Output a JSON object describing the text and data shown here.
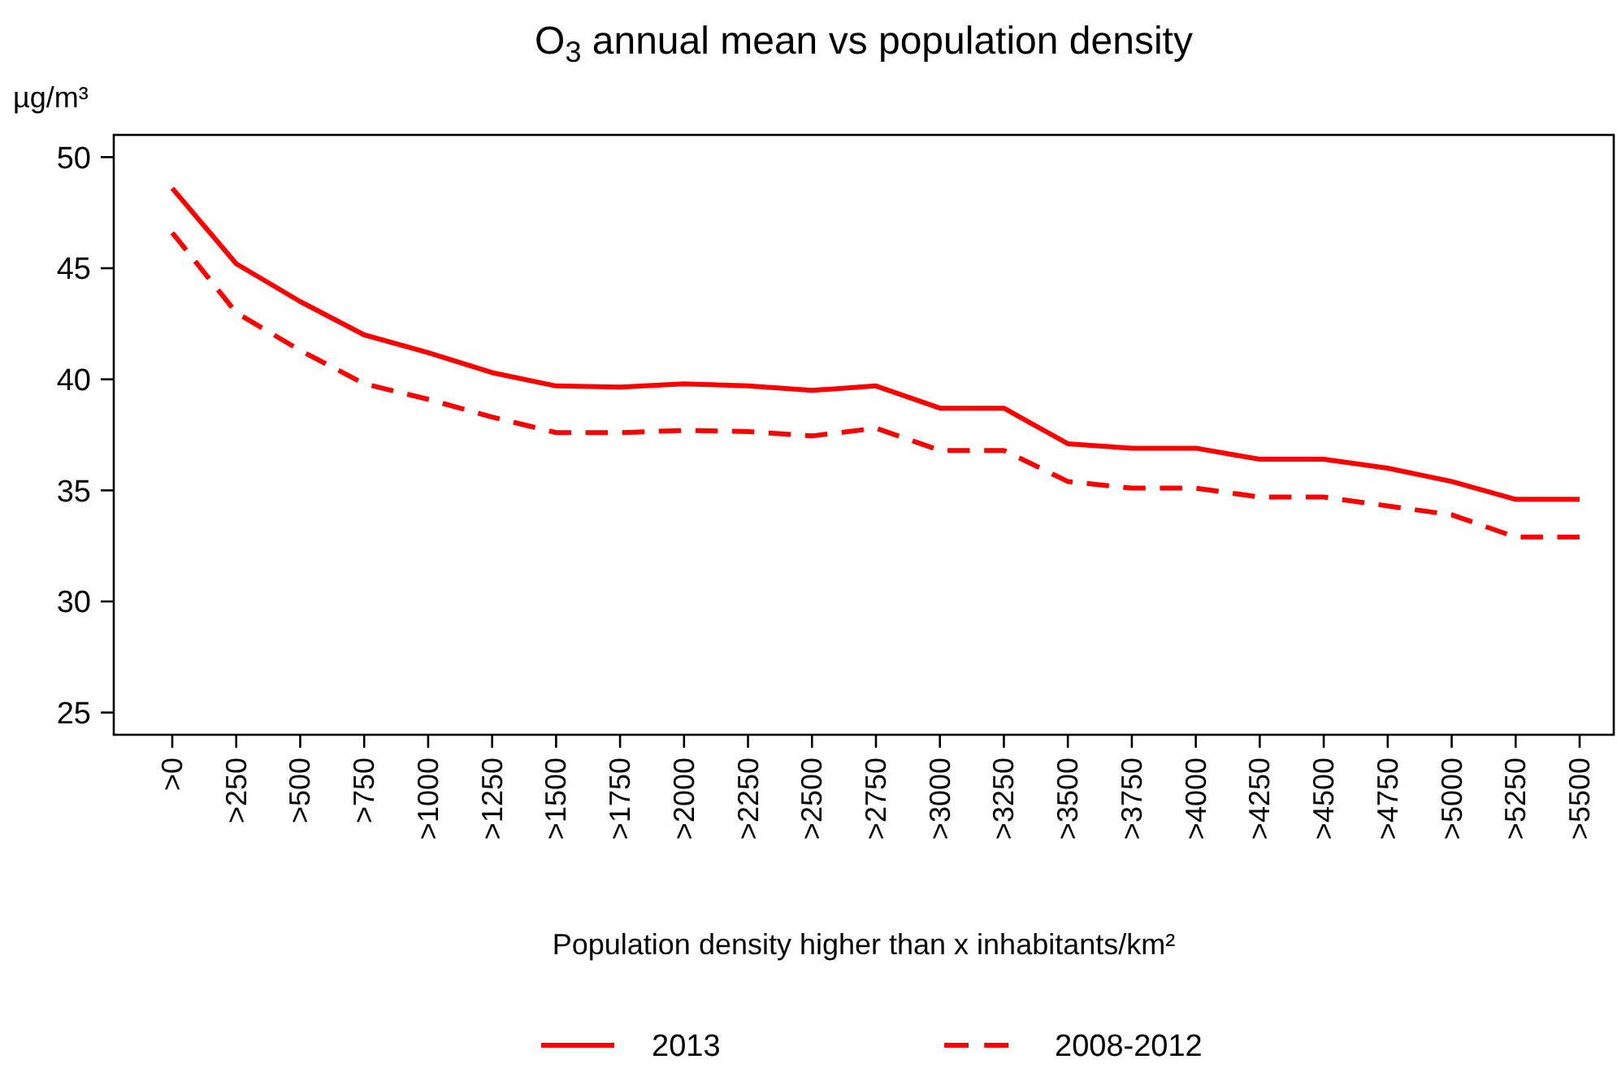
{
  "chart_data": {
    "type": "line",
    "title": "O$_{3}$ annual mean vs population density",
    "ylabel": "µg/m³",
    "xlabel": "Population density higher than x inhabitants/km²",
    "categories": [
      ">0",
      ">250",
      ">500",
      ">750",
      ">1000",
      ">1250",
      ">1500",
      ">1750",
      ">2000",
      ">2250",
      ">2500",
      ">2750",
      ">3000",
      ">3250",
      ">3500",
      ">3750",
      ">4000",
      ">4250",
      ">4500",
      ">4750",
      ">5000",
      ">5250",
      ">5500"
    ],
    "series": [
      {
        "name": "2013",
        "color": "#ff0000",
        "line_style": "solid",
        "values": [
          48.6,
          45.2,
          43.5,
          42.0,
          41.2,
          40.3,
          39.7,
          39.65,
          39.8,
          39.7,
          39.5,
          39.7,
          38.7,
          38.7,
          37.1,
          36.9,
          36.9,
          36.4,
          36.4,
          36.0,
          35.4,
          34.6,
          34.6
        ]
      },
      {
        "name": "2008-2012",
        "color": "#ff0000",
        "line_style": "dashed",
        "values": [
          46.6,
          43.0,
          41.3,
          39.8,
          39.1,
          38.3,
          37.6,
          37.6,
          37.7,
          37.65,
          37.45,
          37.8,
          36.8,
          36.8,
          35.4,
          35.1,
          35.1,
          34.7,
          34.7,
          34.3,
          33.9,
          32.9,
          32.9
        ]
      }
    ],
    "ylim": [
      24,
      51
    ],
    "yticks": [
      25,
      30,
      35,
      40,
      45,
      50
    ],
    "grid": false,
    "legend": "bottom"
  }
}
